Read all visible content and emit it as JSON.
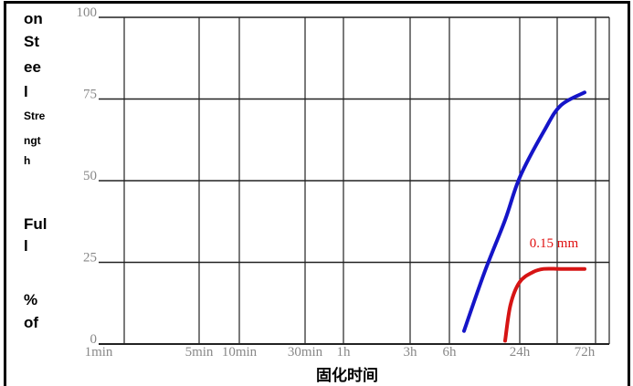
{
  "chart_data": {
    "type": "line",
    "title": "",
    "ylabel_fragments": [
      {
        "text": "on",
        "style": "big"
      },
      {
        "text": "St",
        "style": "big"
      },
      {
        "text": "ee",
        "style": "big"
      },
      {
        "text": "l",
        "style": "big"
      },
      {
        "text": "Stre",
        "style": "small"
      },
      {
        "text": "ngt",
        "style": "small"
      },
      {
        "text": "h",
        "style": "small"
      },
      {
        "text": "Ful",
        "style": "big"
      },
      {
        "text": "l",
        "style": "big"
      },
      {
        "text": "%",
        "style": "big"
      },
      {
        "text": "of",
        "style": "big"
      }
    ],
    "xlabel": "固化时间",
    "ylim": [
      0,
      100
    ],
    "y_ticks": [
      "100",
      "75",
      "50",
      "25",
      "0"
    ],
    "x_ticks": [
      "1min",
      "5min",
      "10min",
      "30min",
      "1h",
      "3h",
      "6h",
      "24h",
      "72h"
    ],
    "grid": true,
    "series": [
      {
        "name": "",
        "color": "#1515c8",
        "x": [
          "8h",
          "12h",
          "18h",
          "24h",
          "36h",
          "48h",
          "72h"
        ],
        "y": [
          4,
          22,
          38,
          51,
          65,
          73,
          77
        ]
      },
      {
        "name": "0.15 mm",
        "color": "#d61414",
        "x": [
          "18h",
          "20h",
          "24h",
          "30h",
          "36h",
          "48h",
          "72h"
        ],
        "y": [
          1,
          12,
          19,
          22,
          23,
          23,
          23
        ]
      }
    ],
    "annotations": [
      {
        "text": "0.15 mm",
        "color": "#e01010",
        "x": "48h",
        "y": 31
      }
    ]
  }
}
